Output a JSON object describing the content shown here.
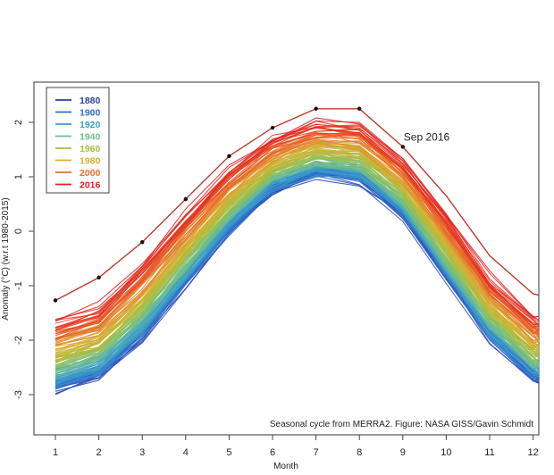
{
  "chart_data": {
    "type": "line",
    "title": "",
    "xlabel": "Month",
    "ylabel": "Anomaly (°C) (w.r.t 1980-2015)",
    "xlim": [
      0.5,
      12.3
    ],
    "ylim": [
      -3.5,
      2.7
    ],
    "x_ticks": [
      "1",
      "2",
      "3",
      "4",
      "5",
      "6",
      "7",
      "8",
      "9",
      "10",
      "11",
      "12"
    ],
    "y_ticks": [
      "-3",
      "-2",
      "-1",
      "0",
      "1",
      "2"
    ],
    "grid": false,
    "legend_position": "top-left",
    "legend": [
      {
        "label": "1880",
        "color": "#2a3fa0"
      },
      {
        "label": "1900",
        "color": "#2f6fc8"
      },
      {
        "label": "1920",
        "color": "#3aa0c8"
      },
      {
        "label": "1940",
        "color": "#6cc08f"
      },
      {
        "label": "1960",
        "color": "#a8c040"
      },
      {
        "label": "1980",
        "color": "#d8b030"
      },
      {
        "label": "2000",
        "color": "#e8702a"
      },
      {
        "label": "2016",
        "color": "#e02020"
      }
    ],
    "ensemble": {
      "description": "One seasonal-cycle line per year 1880-2015, colored by year",
      "years": [
        1880,
        2015
      ],
      "coldest_climatology": [
        -2.95,
        -2.7,
        -2.0,
        -1.0,
        -0.05,
        0.7,
        1.0,
        0.9,
        0.25,
        -0.9,
        -2.0,
        -2.75
      ],
      "warmest_climatology": [
        -1.6,
        -1.35,
        -0.55,
        0.35,
        1.2,
        1.75,
        2.05,
        2.0,
        1.35,
        0.35,
        -0.8,
        -1.5
      ]
    },
    "series": [
      {
        "name": "2016",
        "color": "#c0392b",
        "x": [
          1,
          2,
          3,
          4,
          5,
          6,
          7,
          8,
          9,
          10,
          11,
          12
        ],
        "values": [
          -1.27,
          -0.85,
          -0.2,
          0.59,
          1.38,
          1.9,
          2.25,
          2.25,
          1.55,
          0.65,
          -0.45,
          -1.15
        ],
        "marked_points": [
          1,
          2,
          3,
          4,
          5,
          6,
          7,
          8,
          9
        ]
      }
    ],
    "annotations": [
      {
        "text": "Sep 2016",
        "x": 9,
        "y": 1.55
      },
      {
        "text": "Seasonal cycle from MERRA2. Figure: NASA GISS/Gavin Schmidt",
        "position": "bottom-right"
      }
    ]
  }
}
